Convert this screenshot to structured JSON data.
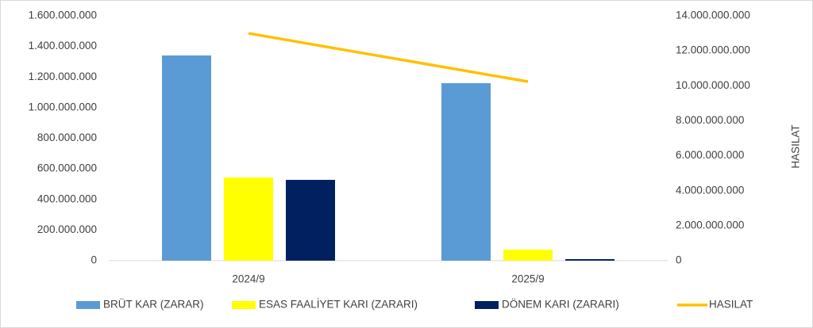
{
  "chart_data": {
    "type": "bar_line",
    "categories": [
      "2024/9",
      "2025/9"
    ],
    "series": [
      {
        "name": "BRÜT KAR (ZARAR)",
        "color": "#5b9bd5",
        "type": "bar",
        "values": [
          1341000000,
          1160000000
        ]
      },
      {
        "name": "ESAS FAALİYET KARI (ZARARI)",
        "color": "#ffff00",
        "type": "bar",
        "values": [
          544000000,
          72000000
        ]
      },
      {
        "name": "DÖNEM KARI (ZARARI)",
        "color": "#002060",
        "type": "bar",
        "values": [
          528000000,
          10000000
        ]
      },
      {
        "name": "HASILAT",
        "color": "#ffc000",
        "type": "line",
        "axis": "y2",
        "values": [
          13000000000,
          10240000000
        ]
      }
    ],
    "ylim": [
      0,
      1600000000
    ],
    "yticks": [
      0,
      {
        "value": 200000000,
        "label": "200.000.000"
      },
      {
        "value": 400000000,
        "label": "400.000.000"
      },
      {
        "value": 600000000,
        "label": "600.000.000"
      },
      {
        "value": 800000000,
        "label": "800.000.000"
      },
      {
        "value": 1000000000,
        "label": "1.000.000.000"
      },
      {
        "value": 1200000000,
        "label": "1.200.000.000"
      },
      {
        "value": 1400000000,
        "label": "1.400.000.000"
      },
      {
        "value": 1600000000,
        "label": "1.600.000.000"
      }
    ],
    "y2lim": [
      0,
      14000000000
    ],
    "y2ticks": [
      0,
      {
        "value": 2000000000,
        "label": "2.000.000.000"
      },
      {
        "value": 4000000000,
        "label": "4.000.000.000"
      },
      {
        "value": 6000000000,
        "label": "6.000.000.000"
      },
      {
        "value": 8000000000,
        "label": "8.000.000.000"
      },
      {
        "value": 10000000000,
        "label": "10.000.000.000"
      },
      {
        "value": 12000000000,
        "label": "12.000.000.000"
      },
      {
        "value": 14000000000,
        "label": "14.000.000.000"
      }
    ],
    "y2label": "HASILAT",
    "grid": false,
    "legend": "bottom"
  }
}
